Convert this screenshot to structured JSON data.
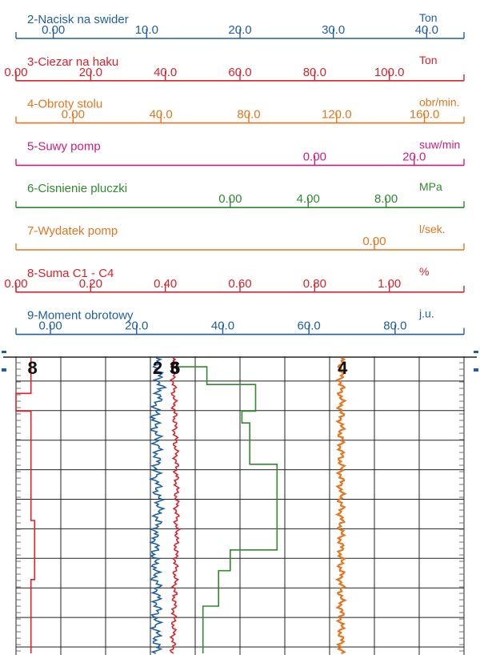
{
  "chart_data": {
    "type": "line",
    "tracks": [
      {
        "id": "t2",
        "name": "2-Nacisk na swider",
        "unit": "Ton",
        "color": "#1f5fa3",
        "ticks": [
          {
            "label": "0.00",
            "v": 0
          },
          {
            "label": "10.0",
            "v": 10
          },
          {
            "label": "20.0",
            "v": 20
          },
          {
            "label": "30.0",
            "v": 30
          },
          {
            "label": "40.0",
            "v": 40
          }
        ],
        "scale": [
          -4,
          44
        ]
      },
      {
        "id": "t3",
        "name": "3-Ciezar na haku",
        "unit": "Ton",
        "color": "#e0202a",
        "ticks": [
          {
            "label": "0.00",
            "v": 0
          },
          {
            "label": "20.0",
            "v": 20
          },
          {
            "label": "40.0",
            "v": 40
          },
          {
            "label": "60.0",
            "v": 60
          },
          {
            "label": "80.0",
            "v": 80
          },
          {
            "label": "100.0",
            "v": 100
          }
        ],
        "scale": [
          0,
          120
        ]
      },
      {
        "id": "t4",
        "name": "4-Obroty stolu",
        "unit": "obr/min.",
        "color": "#e8741c",
        "ticks": [
          {
            "label": "0.00",
            "v": 0
          },
          {
            "label": "40.0",
            "v": 40
          },
          {
            "label": "80.0",
            "v": 80
          },
          {
            "label": "120.0",
            "v": 120
          },
          {
            "label": "160.0",
            "v": 160
          }
        ],
        "scale": [
          -26,
          178
        ]
      },
      {
        "id": "t5",
        "name": "5-Suwy pomp",
        "unit": "suw/min",
        "color": "#d81b7a",
        "ticks": [
          {
            "label": "0.00",
            "v": 0
          },
          {
            "label": "20.0",
            "v": 20
          }
        ],
        "scale": [
          -60,
          30
        ]
      },
      {
        "id": "t6",
        "name": "6-Cisnienie pluczki",
        "unit": "MPa",
        "color": "#2e8b2e",
        "ticks": [
          {
            "label": "0.00",
            "v": 0
          },
          {
            "label": "4.00",
            "v": 4
          },
          {
            "label": "8.00",
            "v": 8
          }
        ],
        "scale": [
          -11,
          12
        ]
      },
      {
        "id": "t7",
        "name": "7-Wydatek pomp",
        "unit": "l/sek.",
        "color": "#e8741c",
        "ticks": [
          {
            "label": "0.00",
            "v": 0
          }
        ],
        "scale": [
          -8,
          2
        ]
      },
      {
        "id": "t8",
        "name": "8-Suma C1 - C4",
        "unit": "%",
        "color": "#e0202a",
        "ticks": [
          {
            "label": "0.00",
            "v": 0
          },
          {
            "label": "0.20",
            "v": 0.2
          },
          {
            "label": "0.40",
            "v": 0.4
          },
          {
            "label": "0.60",
            "v": 0.6
          },
          {
            "label": "0.80",
            "v": 0.8
          },
          {
            "label": "1.00",
            "v": 1
          }
        ],
        "scale": [
          0,
          1.2
        ]
      },
      {
        "id": "t9",
        "name": "9-Moment obrotowy",
        "unit": "j.u.",
        "color": "#1f5fa3",
        "ticks": [
          {
            "label": "0.00",
            "v": 0
          },
          {
            "label": "20.0",
            "v": 20
          },
          {
            "label": "40.0",
            "v": 40
          },
          {
            "label": "60.0",
            "v": 60
          },
          {
            "label": "80.0",
            "v": 80
          }
        ],
        "scale": [
          -8,
          96
        ]
      }
    ],
    "curve_labels": [
      {
        "text": "8",
        "track": "t8",
        "v": 0.04
      },
      {
        "text": "6",
        "track": "t6",
        "v": -2.9
      },
      {
        "text": "2",
        "track": "t2",
        "v": 11
      },
      {
        "text": "3",
        "track": "t3",
        "v": 42
      },
      {
        "text": "4",
        "track": "t4",
        "v": 122
      }
    ],
    "depth_range": [
      0,
      100
    ],
    "series": [
      {
        "name": "8",
        "track": "t8",
        "style": "step",
        "points": [
          [
            0,
            0.04
          ],
          [
            12,
            0.04
          ],
          [
            12,
            0.0
          ],
          [
            18,
            0.0
          ],
          [
            18,
            0.04
          ],
          [
            55,
            0.04
          ],
          [
            55,
            0.05
          ],
          [
            75,
            0.05
          ],
          [
            75,
            0.04
          ],
          [
            100,
            0.04
          ]
        ]
      },
      {
        "name": "6",
        "track": "t6",
        "style": "step",
        "points": [
          [
            0,
            -2.9
          ],
          [
            3,
            -2.9
          ],
          [
            3,
            -1.2
          ],
          [
            9,
            -1.2
          ],
          [
            9,
            1.3
          ],
          [
            18,
            1.3
          ],
          [
            18,
            0.6
          ],
          [
            22,
            0.6
          ],
          [
            22,
            1.0
          ],
          [
            36,
            1.0
          ],
          [
            36,
            2.4
          ],
          [
            65,
            2.4
          ],
          [
            65,
            0.0
          ],
          [
            72,
            0.0
          ],
          [
            72,
            -0.6
          ],
          [
            84,
            -0.6
          ],
          [
            84,
            -1.4
          ],
          [
            100,
            -1.4
          ]
        ]
      },
      {
        "name": "2",
        "track": "t2",
        "style": "wiggle",
        "points": [
          [
            0,
            11
          ],
          [
            10,
            11.5
          ],
          [
            20,
            10.8
          ],
          [
            30,
            11.2
          ],
          [
            40,
            11
          ],
          [
            50,
            11.3
          ],
          [
            60,
            11
          ],
          [
            70,
            10.8
          ],
          [
            80,
            11.2
          ],
          [
            90,
            11
          ],
          [
            100,
            11.1
          ]
        ],
        "amp": 0.6
      },
      {
        "name": "3",
        "track": "t3",
        "style": "wiggle",
        "points": [
          [
            0,
            42
          ],
          [
            20,
            42.5
          ],
          [
            40,
            43
          ],
          [
            60,
            43
          ],
          [
            80,
            42.5
          ],
          [
            100,
            42
          ]
        ],
        "amp": 0.8
      },
      {
        "name": "4",
        "track": "t4",
        "style": "wiggle",
        "points": [
          [
            0,
            122
          ],
          [
            100,
            122
          ]
        ],
        "amp": 1.8
      }
    ]
  }
}
